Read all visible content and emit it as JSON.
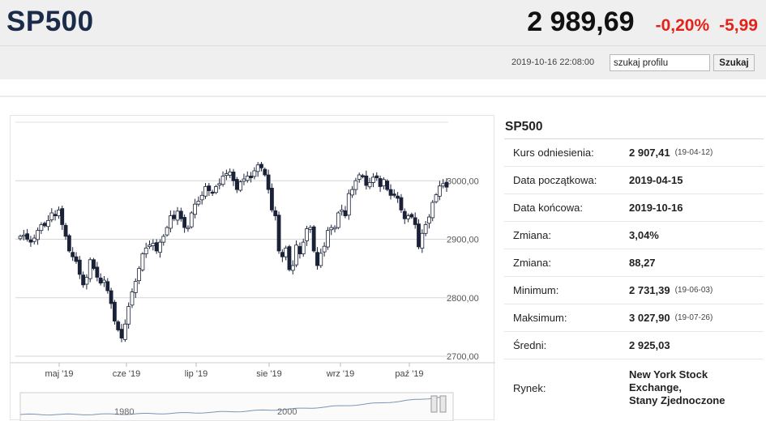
{
  "header": {
    "symbol": "SP500",
    "price": "2 989,69",
    "change_pct": "-0,20%",
    "change_abs": "-5,99",
    "timestamp": "2019-10-16 22:08:00",
    "search_value": "szukaj profilu",
    "search_button": "Szukaj"
  },
  "colors": {
    "down": "#e2231a",
    "candle_dark": "#1b2238",
    "candle_light": "#ffffff",
    "navigator_line": "#7a96b3"
  },
  "stats": {
    "title": "SP500",
    "rows": [
      {
        "label": "Kurs odniesienia:",
        "value": "2 907,41",
        "sub": "(19-04-12)"
      },
      {
        "label": "Data początkowa:",
        "value": "2019-04-15",
        "sub": ""
      },
      {
        "label": "Data końcowa:",
        "value": "2019-10-16",
        "sub": ""
      },
      {
        "label": "Zmiana:",
        "value": "3,04%",
        "sub": ""
      },
      {
        "label": "Zmiana:",
        "value": "88,27",
        "sub": ""
      },
      {
        "label": "Minimum:",
        "value": "2 731,39",
        "sub": "(19-06-03)"
      },
      {
        "label": "Maksimum:",
        "value": "3 027,90",
        "sub": "(19-07-26)"
      },
      {
        "label": "Średni:",
        "value": "2 925,03",
        "sub": ""
      }
    ],
    "market_label": "Rynek:",
    "market_lines": [
      "New York Stock",
      "Exchange,",
      "Stany Zjednoczone"
    ]
  },
  "chart_data": {
    "type": "candlestick",
    "y_ticks": [
      "3000,00",
      "2900,00",
      "2800,00",
      "2700,00"
    ],
    "y_tick_values": [
      3000,
      2900,
      2800,
      2700
    ],
    "ylim": [
      2700,
      3100
    ],
    "x_labels": [
      "maj '19",
      "cze '19",
      "lip '19",
      "sie '19",
      "wrz '19",
      "paź '19"
    ],
    "grid": true,
    "navigator_labels": [
      "1980",
      "2000"
    ],
    "series": [
      {
        "name": "SP500",
        "close": [
          2905,
          2907,
          2900,
          2895,
          2902,
          2915,
          2925,
          2923,
          2932,
          2945,
          2940,
          2950,
          2925,
          2905,
          2880,
          2870,
          2862,
          2840,
          2822,
          2835,
          2865,
          2850,
          2835,
          2825,
          2830,
          2812,
          2790,
          2760,
          2745,
          2731,
          2755,
          2785,
          2810,
          2828,
          2850,
          2875,
          2885,
          2890,
          2893,
          2880,
          2895,
          2905,
          2920,
          2940,
          2935,
          2948,
          2935,
          2920,
          2920,
          2945,
          2960,
          2965,
          2975,
          2990,
          2983,
          2980,
          2990,
          2995,
          3008,
          3012,
          3015,
          3000,
          2985,
          2998,
          3003,
          3008,
          3005,
          3017,
          3027,
          3022,
          3010,
          2985,
          2950,
          2940,
          2880,
          2870,
          2885,
          2848,
          2855,
          2890,
          2875,
          2895,
          2918,
          2920,
          2880,
          2855,
          2876,
          2888,
          2915,
          2920,
          2920,
          2945,
          2950,
          2940,
          2978,
          2985,
          3000,
          3010,
          3007,
          2992,
          2997,
          3006,
          3005,
          2990,
          3002,
          2985,
          2975,
          2975,
          2970,
          2950,
          2935,
          2940,
          2938,
          2925,
          2887,
          2910,
          2925,
          2938,
          2963,
          2976,
          2991,
          2995,
          2989
        ]
      }
    ]
  }
}
